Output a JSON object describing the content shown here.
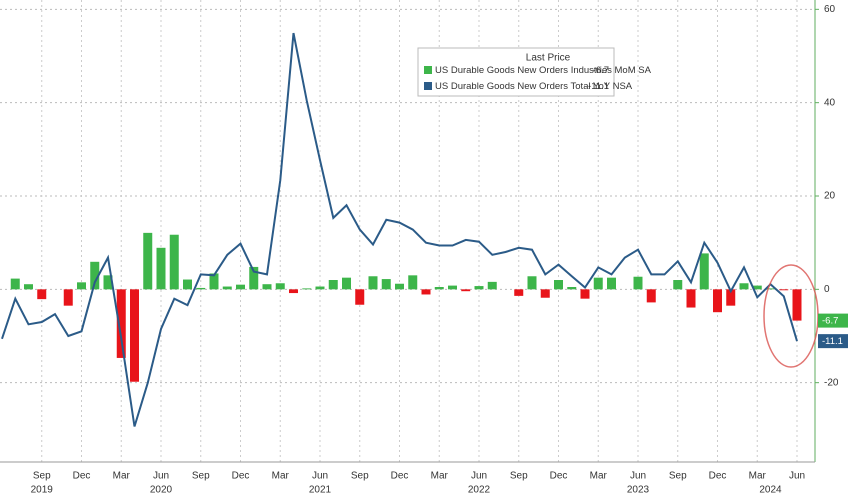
{
  "chart_data": {
    "type": "bar-line",
    "legend_title": "Last Price",
    "categories": [
      null,
      null,
      null,
      "Sep",
      null,
      null,
      "Dec",
      null,
      null,
      "Mar",
      null,
      null,
      "Jun",
      null,
      null,
      "Sep",
      null,
      null,
      "Dec",
      null,
      null,
      "Mar",
      null,
      null,
      "Jun",
      null,
      null,
      "Sep",
      null,
      null,
      "Dec",
      null,
      null,
      "Mar",
      null,
      null,
      "Jun",
      null,
      null,
      "Sep",
      null,
      null,
      "Dec",
      null,
      null,
      "Mar",
      null,
      null,
      "Jun",
      null,
      null,
      "Sep",
      null,
      null,
      "Dec",
      null,
      null,
      "Mar",
      null,
      null,
      "Jun"
    ],
    "years": [
      null,
      null,
      null,
      "2019",
      null,
      null,
      null,
      null,
      null,
      null,
      null,
      null,
      "2020",
      null,
      null,
      null,
      null,
      null,
      null,
      null,
      null,
      null,
      null,
      null,
      "2021",
      null,
      null,
      null,
      null,
      null,
      null,
      null,
      null,
      null,
      null,
      null,
      "2022",
      null,
      null,
      null,
      null,
      null,
      null,
      null,
      null,
      null,
      null,
      null,
      "2023",
      null,
      null,
      null,
      null,
      null,
      null,
      null,
      null,
      null,
      "2024",
      null,
      null
    ],
    "series": [
      {
        "name": "US Durable Goods New Orders Industries MoM SA",
        "kind": "bar",
        "color": "#3db54a",
        "negative_color": "#e8141a",
        "values": [
          0,
          2.3,
          1.1,
          -2.1,
          0,
          -3.5,
          1.5,
          5.9,
          3,
          -14.7,
          -19.8,
          12.1,
          8.9,
          11.7,
          2.1,
          0.3,
          3.4,
          0.6,
          1,
          4.8,
          1.1,
          1.3,
          -0.8,
          0.2,
          0.6,
          2,
          2.5,
          -3.3,
          2.8,
          2.2,
          1.2,
          3,
          -1.1,
          0.5,
          0.8,
          -0.4,
          0.7,
          1.6,
          0,
          -1.4,
          2.8,
          -1.8,
          2,
          0.5,
          -2,
          2.5,
          2.5,
          0,
          2.7,
          -2.8,
          0,
          2,
          -3.9,
          7.7,
          -4.9,
          -3.5,
          1.3,
          0.8,
          0.2,
          -0.2,
          -6.7
        ]
      },
      {
        "name": "US Durable Goods New Orders Total YoY NSA",
        "kind": "line",
        "color": "#2b5b88",
        "values": [
          -10.6,
          -2,
          -7.5,
          -7,
          -5.3,
          -10,
          -9,
          1.5,
          6.8,
          -10.6,
          -29.4,
          -20,
          -8.5,
          -2,
          -3.4,
          3.2,
          3,
          7.4,
          9.8,
          3.8,
          3.2,
          23.4,
          54.9,
          40.4,
          27.7,
          15.3,
          18,
          12.8,
          9.6,
          14.9,
          14.3,
          12.8,
          10,
          9.4,
          9.4,
          10.6,
          10.2,
          7.4,
          8,
          8.9,
          8.5,
          3.2,
          5.3,
          2.8,
          0.4,
          4.7,
          3.2,
          6.8,
          8.5,
          3.2,
          3.2,
          6,
          1.5,
          10,
          5.7,
          -0.4,
          4.7,
          -1.7,
          1.1,
          -1.5,
          -11.1
        ]
      }
    ],
    "ylim": [
      -37,
      62
    ],
    "yticks": [
      -20,
      0,
      20,
      40,
      60
    ],
    "grid": true
  }
}
